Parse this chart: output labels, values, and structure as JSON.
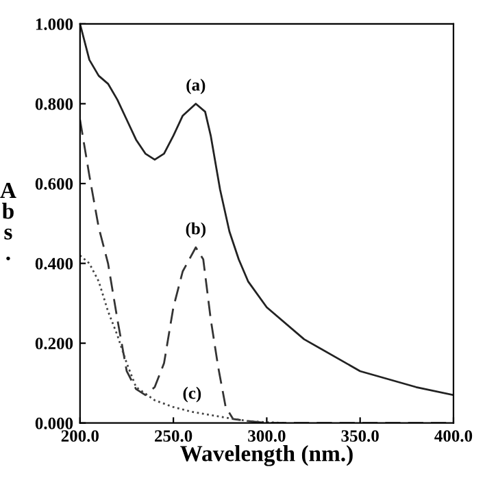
{
  "chart_data": {
    "type": "line",
    "xlabel": "Wavelength (nm.)",
    "ylabel": "Abs.",
    "xlim": [
      200,
      400
    ],
    "ylim": [
      0,
      1
    ],
    "xticks": [
      {
        "value": 200,
        "label": "200.0"
      },
      {
        "value": 250,
        "label": "250.0"
      },
      {
        "value": 300,
        "label": "300.0"
      },
      {
        "value": 350,
        "label": "350.0"
      },
      {
        "value": 400,
        "label": "400.0"
      }
    ],
    "yticks": [
      {
        "value": 0,
        "label": "0.000"
      },
      {
        "value": 0.2,
        "label": "0.200"
      },
      {
        "value": 0.4,
        "label": "0.400"
      },
      {
        "value": 0.6,
        "label": "0.600"
      },
      {
        "value": 0.8,
        "label": "0.800"
      },
      {
        "value": 1.0,
        "label": "1.000"
      }
    ],
    "grid": false,
    "legend": false,
    "marker": "none",
    "series": [
      {
        "name": "(a)",
        "color": "#222222",
        "line_style": "solid",
        "x": [
          200,
          205,
          210,
          215,
          220,
          225,
          230,
          235,
          240,
          245,
          250,
          255,
          262,
          267,
          270,
          275,
          280,
          285,
          290,
          300,
          320,
          350,
          380,
          400
        ],
        "values": [
          1.0,
          0.91,
          0.87,
          0.85,
          0.81,
          0.76,
          0.71,
          0.675,
          0.66,
          0.675,
          0.72,
          0.77,
          0.8,
          0.78,
          0.72,
          0.585,
          0.48,
          0.41,
          0.355,
          0.29,
          0.21,
          0.13,
          0.09,
          0.07
        ]
      },
      {
        "name": "(b)",
        "color": "#333333",
        "line_style": "dashed",
        "x": [
          200,
          205,
          210,
          215,
          220,
          225,
          230,
          235,
          240,
          245,
          250,
          255,
          262,
          266,
          270,
          274,
          278,
          282,
          290,
          300,
          400
        ],
        "values": [
          0.76,
          0.62,
          0.49,
          0.4,
          0.26,
          0.13,
          0.085,
          0.07,
          0.09,
          0.15,
          0.29,
          0.38,
          0.44,
          0.41,
          0.26,
          0.14,
          0.04,
          0.01,
          0.005,
          0.0,
          0.0
        ]
      },
      {
        "name": "(c)",
        "color": "#444444",
        "line_style": "dotted",
        "x": [
          200,
          205,
          210,
          215,
          220,
          225,
          230,
          240,
          250,
          260,
          270,
          280,
          290,
          300,
          310
        ],
        "values": [
          0.42,
          0.4,
          0.355,
          0.28,
          0.22,
          0.15,
          0.09,
          0.057,
          0.04,
          0.028,
          0.02,
          0.012,
          0.005,
          0.002,
          0.0
        ]
      }
    ]
  }
}
